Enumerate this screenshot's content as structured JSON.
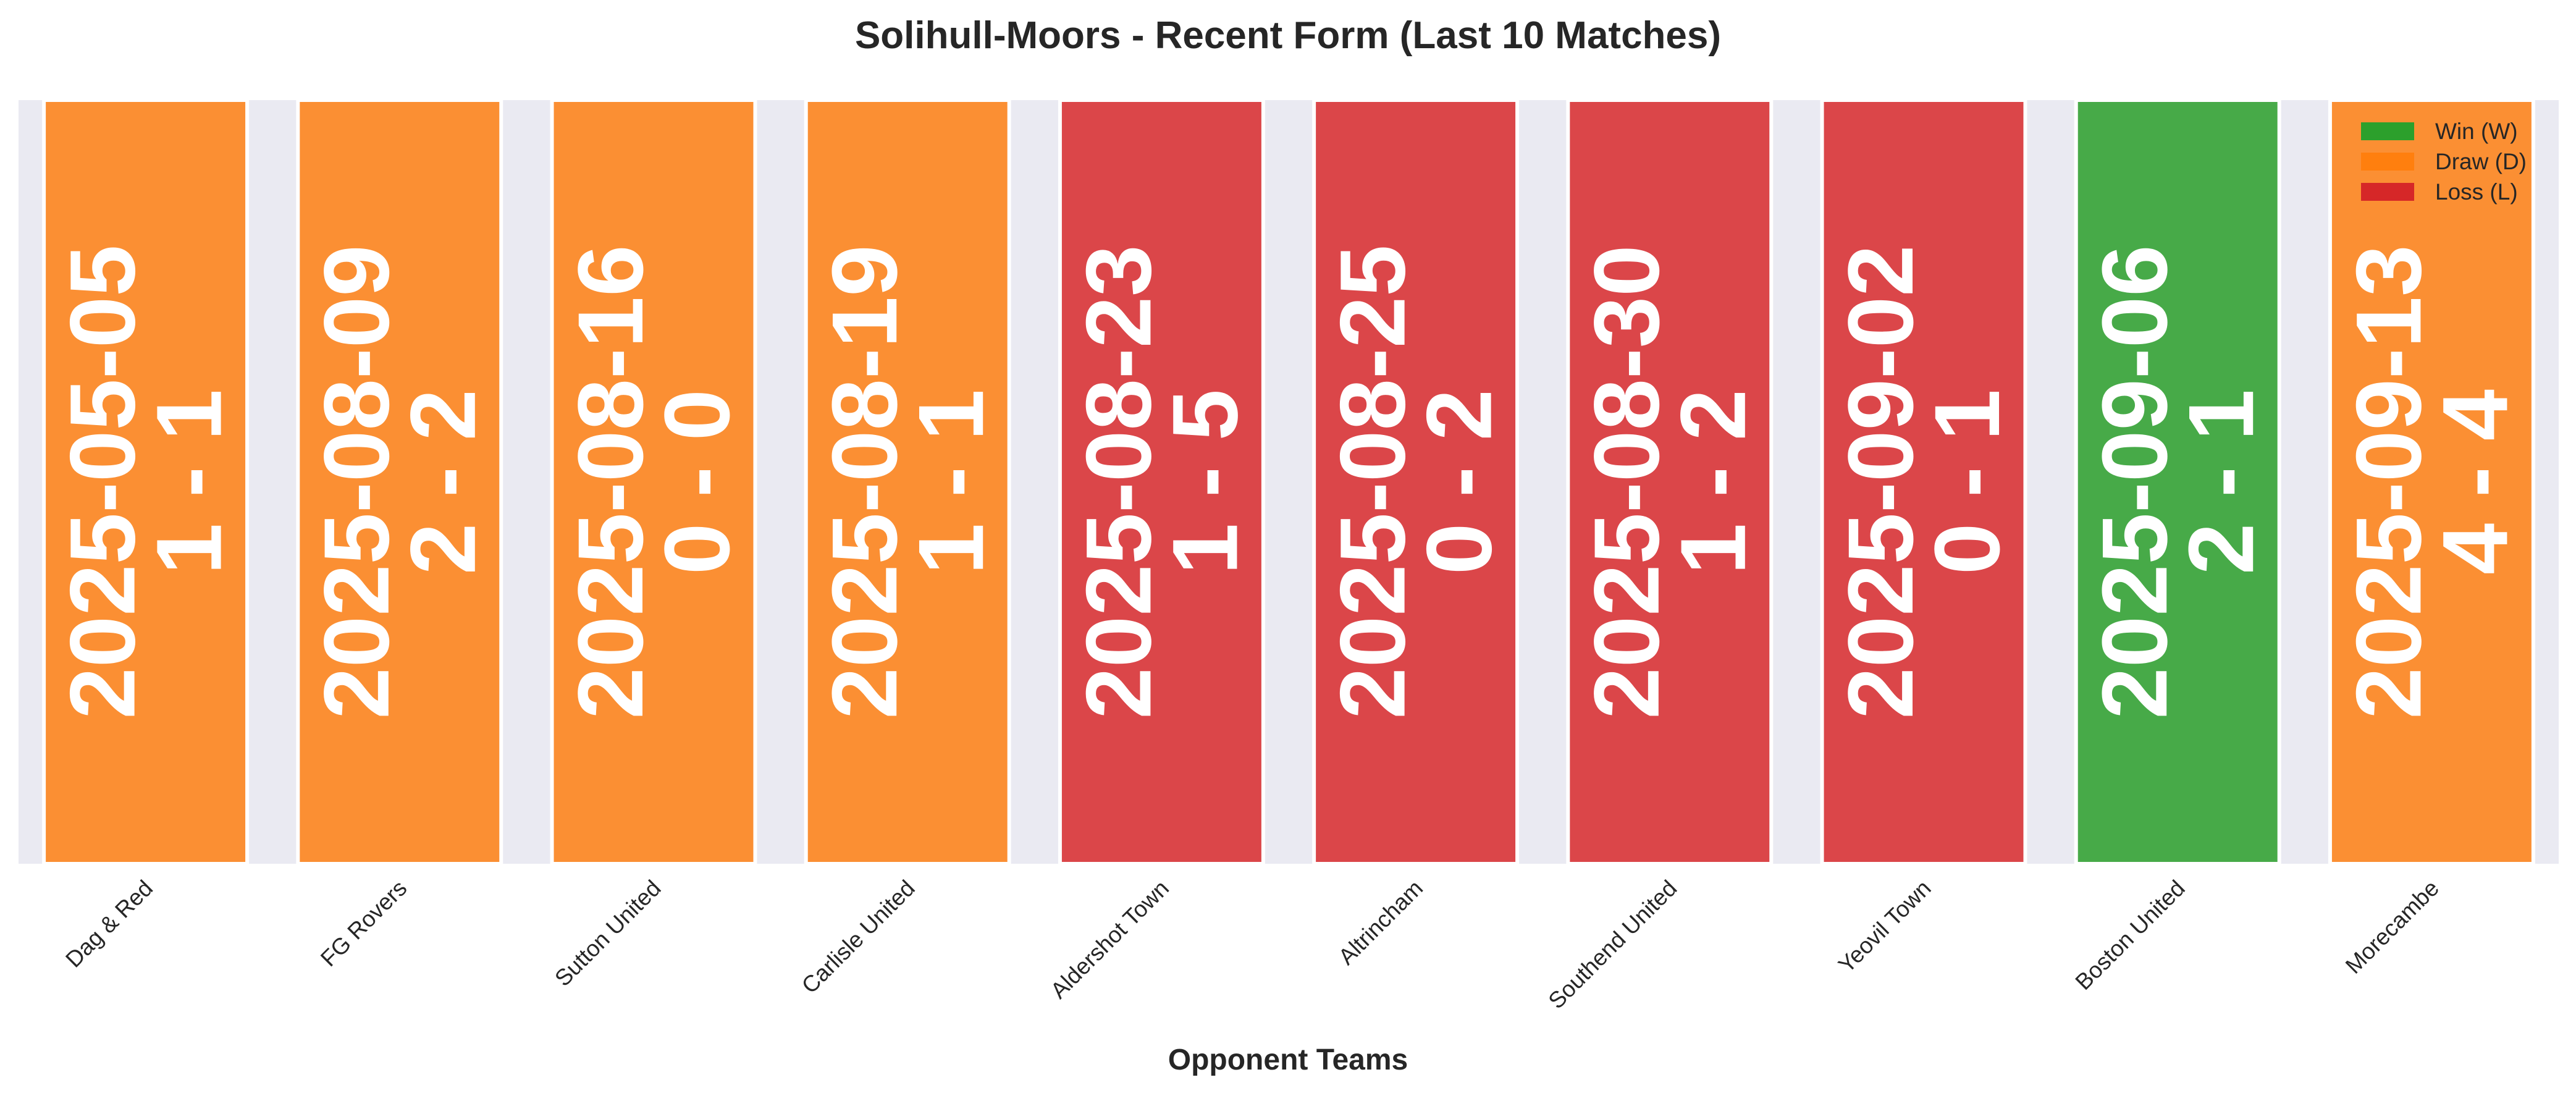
{
  "chart_data": {
    "type": "bar",
    "title": "Solihull-Moors - Recent Form (Last 10 Matches)",
    "xlabel": "Opponent Teams",
    "ylabel": "",
    "ylim": [
      0,
      1
    ],
    "grid": false,
    "legend_position": "top-right",
    "categories": [
      "Dag & Red",
      "FG Rovers",
      "Sutton United",
      "Carlisle United",
      "Aldershot Town",
      "Altrincham",
      "Southend United",
      "Yeovil Town",
      "Boston United",
      "Morecambe"
    ],
    "values": [
      1,
      1,
      1,
      1,
      1,
      1,
      1,
      1,
      1,
      1
    ],
    "results": [
      "D",
      "D",
      "D",
      "D",
      "L",
      "L",
      "L",
      "L",
      "W",
      "D"
    ],
    "dates": [
      "2025-05-05",
      "2025-08-09",
      "2025-08-16",
      "2025-08-19",
      "2025-08-23",
      "2025-08-25",
      "2025-08-30",
      "2025-09-02",
      "2025-09-06",
      "2025-09-13"
    ],
    "scores": [
      "1 - 1",
      "2 - 2",
      "0 - 0",
      "1 - 1",
      "1 - 5",
      "0 - 2",
      "1 - 2",
      "0 - 1",
      "2 - 1",
      "4 - 4"
    ],
    "legend": [
      {
        "key": "W",
        "label": "Win (W)",
        "color": "#2ca02c"
      },
      {
        "key": "D",
        "label": "Draw (D)",
        "color": "#ff7f0e"
      },
      {
        "key": "L",
        "label": "Loss (L)",
        "color": "#d62728"
      }
    ],
    "bar_colors": {
      "W": "#47aa48",
      "D": "#fb8f33",
      "L": "#db4649"
    },
    "plot_background": "#eaeaf2"
  }
}
